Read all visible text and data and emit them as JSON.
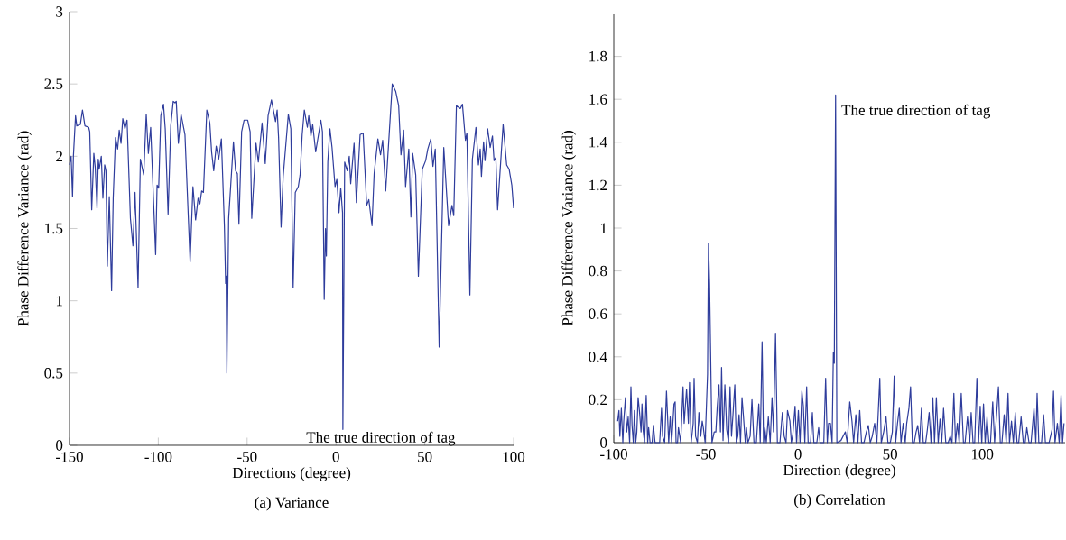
{
  "chart_data": [
    {
      "type": "line",
      "title": "(a) Variance",
      "xlabel": "Directions (degree)",
      "ylabel": "Phase Difference Variance (rad)",
      "color": "#2e3c9c",
      "xlim": [
        -150,
        100
      ],
      "ylim": [
        0,
        3
      ],
      "xticks": [
        -150,
        -100,
        -50,
        0,
        50,
        100
      ],
      "yticks": [
        0,
        0.5,
        1,
        1.5,
        2,
        2.5,
        3
      ],
      "annotations": [
        {
          "text": "The true direction of tag",
          "x": 3.9,
          "y": 0.11
        }
      ],
      "x": [
        -150.0,
        -149.1,
        -148.3,
        -147.8,
        -146.6,
        -145.9,
        -143.9,
        -142.7,
        -141.3,
        -139.2,
        -138.6,
        -137.5,
        -136.3,
        -135.5,
        -134.5,
        -133.8,
        -133.3,
        -132.1,
        -131.2,
        -130.2,
        -129.5,
        -128.7,
        -127.6,
        -126.3,
        -125.4,
        -124.1,
        -122.9,
        -122.0,
        -121.0,
        -120.0,
        -118.8,
        -117.6,
        -115.7,
        -114.3,
        -113.1,
        -111.4,
        -110.1,
        -108.2,
        -106.8,
        -105.6,
        -104.3,
        -101.5,
        -100.7,
        -99.8,
        -98.6,
        -97.1,
        -96.1,
        -94.5,
        -93.0,
        -91.6,
        -90.6,
        -89.9,
        -88.7,
        -87.2,
        -85.0,
        -82.1,
        -80.5,
        -79.0,
        -77.6,
        -76.6,
        -75.6,
        -74.6,
        -72.7,
        -71.0,
        -70.0,
        -68.8,
        -67.4,
        -66.0,
        -64.5,
        -62.8,
        -62.1,
        -61.8,
        -61.4,
        -60.4,
        -57.7,
        -56.5,
        -55.5,
        -54.6,
        -53.1,
        -51.7,
        -49.7,
        -48.3,
        -47.4,
        -45.0,
        -43.7,
        -41.6,
        -39.8,
        -38.2,
        -36.3,
        -34.0,
        -33.1,
        -32.3,
        -30.9,
        -29.7,
        -26.8,
        -25.4,
        -24.1,
        -22.9,
        -21.2,
        -20.2,
        -19.0,
        -17.8,
        -16.1,
        -15.3,
        -14.1,
        -13.1,
        -11.4,
        -8.5,
        -7.6,
        -6.6,
        -5.9,
        -5.4,
        -4.6,
        -3.4,
        -2.2,
        -0.5,
        0.5,
        1.7,
        2.7,
        3.7,
        3.9,
        4.9,
        6.3,
        7.5,
        8.3,
        10.2,
        11.5,
        13.6,
        15.3,
        17.3,
        18.5,
        20.3,
        21.5,
        23.6,
        25.1,
        26.3,
        28.0,
        31.7,
        33.6,
        35.3,
        36.6,
        38.1,
        39.2,
        41.0,
        42.2,
        43.2,
        44.9,
        46.4,
        48.6,
        50.5,
        51.7,
        53.4,
        54.6,
        55.9,
        58.1,
        60.7,
        63.4,
        65.3,
        66.3,
        67.8,
        70.0,
        71.2,
        72.9,
        73.7,
        75.4,
        76.8,
        78.8,
        80.2,
        81.2,
        81.9,
        83.1,
        83.9,
        85.4,
        86.8,
        88.1,
        89.0,
        90.0,
        91.0,
        94.1,
        96.1,
        97.5,
        99.0,
        100.0
      ],
      "values": [
        1.94,
        2.0,
        1.72,
        2.0,
        2.28,
        2.21,
        2.22,
        2.32,
        2.21,
        2.2,
        2.17,
        1.63,
        2.02,
        1.92,
        1.64,
        1.98,
        1.91,
        2.0,
        1.71,
        1.94,
        1.9,
        1.24,
        1.72,
        1.07,
        1.71,
        2.13,
        2.05,
        2.18,
        2.09,
        2.26,
        2.19,
        2.25,
        1.57,
        1.38,
        1.75,
        1.09,
        1.98,
        1.87,
        2.29,
        2.02,
        2.2,
        1.32,
        1.8,
        1.78,
        2.28,
        2.36,
        2.19,
        1.6,
        2.21,
        2.38,
        2.37,
        2.38,
        2.09,
        2.29,
        2.15,
        1.27,
        1.79,
        1.56,
        1.71,
        1.67,
        1.76,
        1.75,
        2.32,
        2.23,
        2.03,
        1.9,
        2.07,
        1.98,
        2.12,
        1.52,
        1.12,
        1.17,
        0.5,
        1.57,
        2.1,
        1.9,
        1.88,
        1.53,
        2.17,
        2.25,
        2.25,
        2.17,
        1.57,
        2.09,
        1.96,
        2.23,
        1.95,
        2.28,
        2.39,
        2.24,
        2.32,
        2.13,
        1.51,
        1.86,
        2.29,
        2.19,
        1.09,
        1.75,
        1.79,
        1.87,
        2.15,
        2.32,
        2.2,
        2.28,
        2.14,
        2.22,
        2.03,
        2.25,
        2.17,
        1.01,
        1.5,
        1.31,
        1.96,
        2.19,
        2.06,
        1.79,
        1.84,
        1.61,
        1.78,
        1.61,
        0.11,
        1.96,
        1.9,
        2.0,
        1.81,
        2.09,
        1.68,
        2.15,
        2.16,
        1.66,
        1.7,
        1.52,
        1.88,
        2.12,
        2.01,
        2.11,
        1.76,
        2.5,
        2.45,
        2.35,
        2.01,
        2.18,
        1.79,
        2.05,
        1.58,
        2.02,
        1.87,
        1.17,
        1.91,
        1.97,
        2.05,
        2.12,
        1.93,
        2.05,
        0.68,
        2.06,
        1.52,
        1.66,
        1.59,
        2.35,
        2.33,
        2.36,
        2.11,
        2.16,
        1.04,
        1.98,
        2.2,
        1.94,
        2.05,
        1.86,
        2.1,
        1.97,
        2.19,
        2.06,
        2.14,
        1.97,
        1.99,
        1.63,
        2.22,
        1.94,
        1.91,
        1.8,
        1.64
      ]
    },
    {
      "type": "line",
      "title": "(b) Correlation",
      "xlabel": "Direction (degree)",
      "ylabel": "Phase Difference Variance (rad)",
      "color": "#2e3c9c",
      "xlim": [
        -100,
        145
      ],
      "ylim": [
        0,
        2
      ],
      "xticks": [
        -100,
        -50,
        0,
        50,
        100
      ],
      "yticks": [
        0,
        0.2,
        0.4,
        0.6,
        0.8,
        1,
        1.2,
        1.4,
        1.6,
        1.8
      ],
      "annotations": [
        {
          "text": "The true direction of tag",
          "x": 20.4,
          "y": 1.62
        }
      ],
      "x": [
        -97.9,
        -97.2,
        -96.7,
        -95.9,
        -95.1,
        -94.6,
        -93.7,
        -93.0,
        -92.2,
        -91.4,
        -90.7,
        -90.1,
        -89.4,
        -88.8,
        -88.1,
        -87.5,
        -86.8,
        -86.0,
        -85.2,
        -84.7,
        -84.1,
        -83.3,
        -82.4,
        -81.6,
        -81.1,
        -80.3,
        -79.2,
        -78.5,
        -77.6,
        -75.1,
        -74.1,
        -73.5,
        -72.4,
        -71.4,
        -70.2,
        -69.4,
        -68.6,
        -67.3,
        -66.7,
        -66.2,
        -65.4,
        -64.9,
        -63.7,
        -62.4,
        -61.8,
        -60.5,
        -59.5,
        -58.9,
        -58.0,
        -56.9,
        -56.4,
        -55.6,
        -54.6,
        -53.8,
        -52.8,
        -52.0,
        -51.4,
        -50.4,
        -49.1,
        -48.6,
        -48.0,
        -46.7,
        -45.5,
        -44.6,
        -43.9,
        -42.9,
        -42.1,
        -41.5,
        -40.7,
        -39.7,
        -38.7,
        -37.7,
        -36.9,
        -36.1,
        -35.3,
        -34.3,
        -33.5,
        -32.7,
        -32.0,
        -31.2,
        -30.4,
        -29.6,
        -28.6,
        -28.0,
        -27.2,
        -26.0,
        -25.0,
        -23.9,
        -22.6,
        -21.3,
        -20.5,
        -19.5,
        -18.7,
        -18.0,
        -17.2,
        -16.1,
        -15.1,
        -14.1,
        -13.3,
        -12.2,
        -11.2,
        -9.8,
        -8.5,
        -7.5,
        -6.5,
        -5.7,
        -4.4,
        -3.6,
        -2.8,
        -1.6,
        -0.8,
        0.2,
        1.1,
        2.1,
        2.9,
        3.7,
        4.7,
        5.5,
        6.8,
        7.8,
        8.6,
        10.2,
        11.2,
        12.0,
        14.0,
        15.0,
        15.9,
        16.6,
        17.6,
        18.5,
        19.2,
        19.7,
        20.4,
        21.1,
        23.3,
        25.7,
        26.7,
        28.1,
        29.3,
        30.2,
        31.4,
        32.5,
        33.5,
        34.5,
        35.8,
        37.1,
        38.2,
        39.2,
        40.3,
        41.6,
        42.8,
        43.6,
        44.4,
        45.2,
        46.5,
        47.8,
        48.8,
        50.1,
        51.2,
        52.2,
        53.0,
        54.0,
        55.0,
        55.9,
        57.1,
        58.2,
        59.0,
        60.2,
        61.1,
        62.1,
        63.1,
        64.1,
        65.0,
        66.0,
        67.0,
        68.0,
        69.3,
        70.2,
        71.2,
        72.2,
        73.2,
        74.1,
        75.1,
        76.1,
        77.1,
        78.0,
        79.0,
        80.2,
        81.5,
        82.6,
        83.6,
        84.6,
        85.5,
        86.5,
        87.5,
        88.6,
        89.8,
        90.7,
        92.0,
        93.2,
        94.0,
        95.0,
        95.9,
        97.1,
        98.0,
        98.9,
        99.7,
        100.7,
        101.6,
        102.6,
        103.6,
        104.5,
        105.7,
        106.7,
        107.8,
        108.8,
        109.8,
        110.7,
        111.9,
        113.0,
        114.0,
        114.8,
        115.9,
        116.9,
        117.9,
        118.9,
        119.8,
        121.1,
        122.3,
        123.3,
        124.2,
        125.4,
        126.5,
        128.1,
        129.1,
        129.8,
        130.7,
        132.2,
        133.3,
        134.3,
        135.3,
        136.3,
        137.9,
        138.7,
        139.5,
        140.8,
        141.8,
        142.8,
        143.6,
        144.4
      ],
      "values": [
        0.1,
        0.15,
        0.03,
        0.16,
        0,
        0.1,
        0.21,
        0.05,
        0.12,
        0,
        0.26,
        0.08,
        0,
        0.15,
        0,
        0.05,
        0.21,
        0.14,
        0.05,
        0.18,
        0.06,
        0,
        0.22,
        0,
        0.07,
        0,
        0,
        0.08,
        0,
        0,
        0.16,
        0.03,
        0,
        0.24,
        0,
        0.12,
        0,
        0.18,
        0.19,
        0,
        0,
        0.07,
        0,
        0.26,
        0.09,
        0.25,
        0.09,
        0.28,
        0,
        0.09,
        0.3,
        0.03,
        0,
        0.14,
        0.03,
        0.1,
        0.07,
        0,
        0.32,
        0.93,
        0.74,
        0,
        0.05,
        0.05,
        0.16,
        0.27,
        0.05,
        0.35,
        0.01,
        0.27,
        0.06,
        0,
        0.26,
        0.03,
        0.13,
        0.27,
        0,
        0.03,
        0.13,
        0,
        0.21,
        0.12,
        0,
        0.07,
        0,
        0.03,
        0.2,
        0,
        0,
        0.18,
        0,
        0.47,
        0,
        0.07,
        0,
        0.12,
        0,
        0.21,
        0.05,
        0.51,
        0,
        0,
        0.14,
        0.03,
        0,
        0.15,
        0.1,
        0,
        0.04,
        0.17,
        0,
        0.15,
        0,
        0.24,
        0.17,
        0,
        0.26,
        0,
        0,
        0.14,
        0,
        0,
        0.07,
        0,
        0,
        0.3,
        0,
        0.09,
        0.09,
        0,
        0.42,
        0.37,
        1.62,
        0,
        0.01,
        0.05,
        0,
        0.19,
        0.1,
        0,
        0.13,
        0,
        0.15,
        0,
        0,
        0.05,
        0.08,
        0,
        0.03,
        0.09,
        0,
        0.15,
        0.3,
        0,
        0.05,
        0.12,
        0,
        0,
        0.05,
        0.31,
        0,
        0.09,
        0.16,
        0,
        0.09,
        0,
        0.09,
        0.16,
        0.26,
        0,
        0,
        0.05,
        0.08,
        0,
        0.16,
        0,
        0,
        0.06,
        0.14,
        0,
        0.21,
        0,
        0.21,
        0,
        0.11,
        0,
        0.16,
        0,
        0,
        0.03,
        0,
        0.23,
        0,
        0.09,
        0,
        0.23,
        0,
        0,
        0.12,
        0,
        0.14,
        0,
        0,
        0.3,
        0,
        0.17,
        0,
        0.18,
        0,
        0.12,
        0,
        0,
        0.19,
        0,
        0.13,
        0.26,
        0,
        0,
        0.13,
        0,
        0.23,
        0,
        0.1,
        0,
        0.14,
        0,
        0,
        0.12,
        0,
        0,
        0.07,
        0,
        0,
        0.16,
        0,
        0.23,
        0,
        0,
        0.13,
        0,
        0,
        0,
        0.06,
        0.24,
        0,
        0.09,
        0,
        0.22,
        0,
        0.09
      ]
    }
  ]
}
